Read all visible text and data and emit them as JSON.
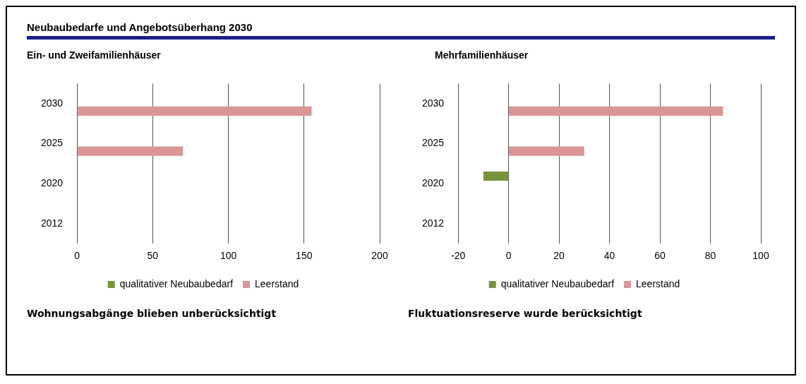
{
  "chart_data": [
    {
      "type": "bar",
      "orientation": "horizontal",
      "title": "Neubaubedarfe und Angebotsüberhang 2030",
      "subtitle": "Ein- und Zweifamilienhäuser",
      "categories": [
        "2030",
        "2025",
        "2020",
        "2012"
      ],
      "series": [
        {
          "name": "qualitativer Neubaubedarf",
          "color": "#77933c",
          "values": [
            null,
            null,
            null,
            null
          ]
        },
        {
          "name": "Leerstand",
          "color": "#d99694",
          "values": [
            155,
            70,
            null,
            null
          ]
        }
      ],
      "xlim": [
        0,
        200
      ],
      "xticks": [
        0,
        50,
        100,
        150,
        200
      ],
      "grid": "x",
      "legend": "bottom",
      "annotations": [
        "Wohnungsabgänge blieben unberücksichtigt"
      ]
    },
    {
      "type": "bar",
      "orientation": "horizontal",
      "title": "Mehrfamilienhäuser",
      "categories": [
        "2030",
        "2025",
        "2020",
        "2012"
      ],
      "series": [
        {
          "name": "qualitativer Neubaubedarf",
          "color": "#77933c",
          "values": [
            null,
            null,
            -10,
            null
          ]
        },
        {
          "name": "Leerstand",
          "color": "#d99694",
          "values": [
            85,
            30,
            null,
            null
          ]
        }
      ],
      "xlim": [
        -20,
        100
      ],
      "xticks": [
        -20,
        0,
        20,
        40,
        60,
        80,
        100
      ],
      "grid": "x",
      "legend": "bottom",
      "annotations": [
        "Fluktuationsreserve wurde berücksichtigt"
      ]
    }
  ]
}
